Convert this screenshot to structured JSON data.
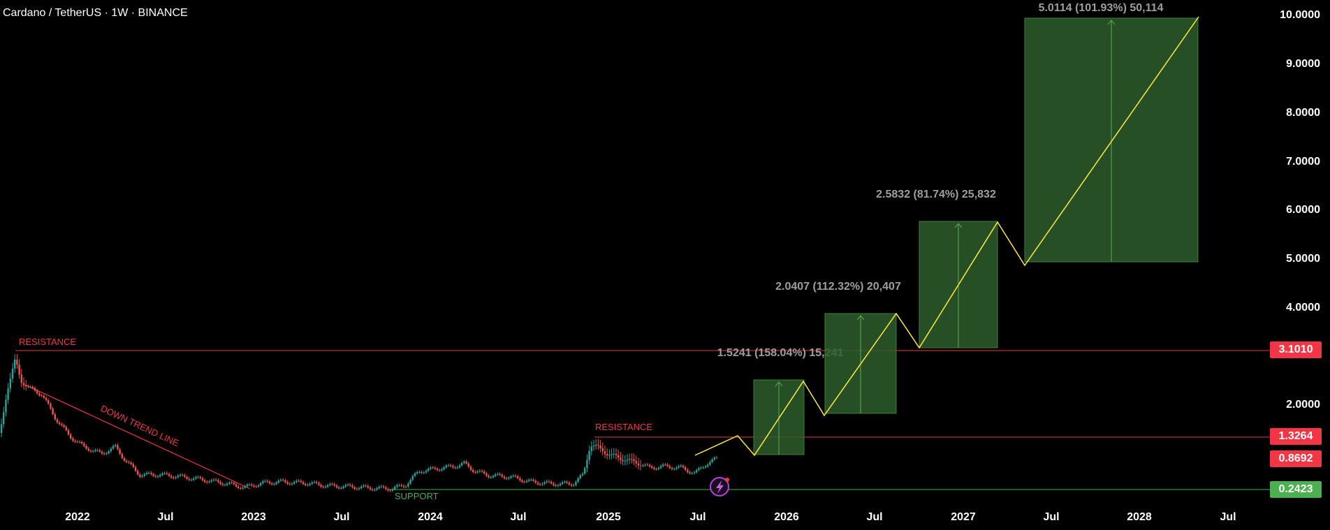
{
  "title": "Cardano / TetherUS · 1W · BINANCE",
  "chart_data": {
    "type": "candlestick",
    "ylim": [
      0,
      10
    ],
    "y_ticks": [
      "10.0000",
      "9.0000",
      "8.0000",
      "7.0000",
      "6.0000",
      "5.0000",
      "4.0000",
      "2.0000"
    ],
    "x_ticks": [
      "2022",
      "Jul",
      "2023",
      "Jul",
      "2024",
      "Jul",
      "2025",
      "Jul",
      "2026",
      "Jul",
      "2027",
      "Jul",
      "2028",
      "Jul"
    ],
    "price_badges": {
      "resistance_high": "3.1010",
      "resistance_low": "1.3264",
      "current": "0.8692",
      "support": "0.2423"
    },
    "annotations": {
      "resistance_top": "RESISTANCE",
      "resistance_mid": "RESISTANCE",
      "downtrend": "DOWN TREND  LINE",
      "support": "SUPPORT"
    },
    "projections": [
      {
        "label": "1.5241 (158.04%) 15,241"
      },
      {
        "label": "2.0407 (112.32%) 20,407"
      },
      {
        "label": "2.5832 (81.74%) 25,832"
      },
      {
        "label": "5.0114 (101.93%) 50,114"
      }
    ],
    "colors": {
      "up": "#26a69a",
      "down": "#ef5350",
      "resistance": "#f23645",
      "support": "#4caf50",
      "projection_fill": "#2e5d2b",
      "path": "#ffeb3b"
    }
  }
}
